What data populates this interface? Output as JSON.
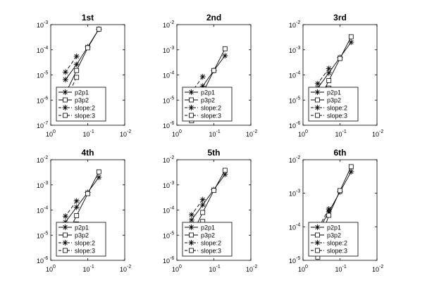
{
  "chart_data": [
    {
      "type": "line",
      "title": "1st",
      "x_scale": "log",
      "y_scale": "log",
      "xlim": [
        1,
        0.01
      ],
      "ylim": [
        1e-07,
        0.001
      ],
      "x_ticks": [
        {
          "base": "10",
          "exp": "0"
        },
        {
          "base": "10",
          "exp": "-1"
        },
        {
          "base": "10",
          "exp": "-2"
        }
      ],
      "y_ticks": [
        {
          "base": "10",
          "exp": "-3"
        },
        {
          "base": "10",
          "exp": "-4"
        },
        {
          "base": "10",
          "exp": "-5"
        },
        {
          "base": "10",
          "exp": "-6"
        },
        {
          "base": "10",
          "exp": "-7"
        }
      ],
      "legend_position": "bottom-left",
      "series": [
        {
          "name": "p2p1",
          "marker": "star",
          "dash": "solid",
          "x": [
            0.05,
            0.1,
            0.2,
            0.4
          ],
          "y": [
            0.00066,
            0.00013,
            2.6e-05,
            6.5e-06
          ]
        },
        {
          "name": "p3p2",
          "marker": "square",
          "dash": "solid",
          "x": [
            0.05,
            0.1,
            0.2,
            0.4
          ],
          "y": [
            0.00066,
            0.00012,
            1.5e-05,
            1.8e-06
          ]
        },
        {
          "name": "slope:2",
          "marker": "star",
          "dash": "dashed",
          "x": [
            0.2,
            0.4
          ],
          "y": [
            5.5e-05,
            1.3e-05
          ]
        },
        {
          "name": "slope:3",
          "marker": "square",
          "dash": "dashed",
          "x": [
            0.2,
            0.4
          ],
          "y": [
            8e-06,
            1e-06
          ]
        }
      ]
    },
    {
      "type": "line",
      "title": "2nd",
      "x_scale": "log",
      "y_scale": "log",
      "xlim": [
        1,
        0.01
      ],
      "ylim": [
        1e-06,
        0.01
      ],
      "x_ticks": [
        {
          "base": "10",
          "exp": "0"
        },
        {
          "base": "10",
          "exp": "-1"
        },
        {
          "base": "10",
          "exp": "-2"
        }
      ],
      "y_ticks": [
        {
          "base": "10",
          "exp": "-2"
        },
        {
          "base": "10",
          "exp": "-3"
        },
        {
          "base": "10",
          "exp": "-4"
        },
        {
          "base": "10",
          "exp": "-5"
        },
        {
          "base": "10",
          "exp": "-6"
        }
      ],
      "legend_position": "bottom-left",
      "series": [
        {
          "name": "p2p1",
          "marker": "star",
          "dash": "solid",
          "x": [
            0.05,
            0.1,
            0.2,
            0.4
          ],
          "y": [
            0.00058,
            0.00015,
            3.6e-05,
            9e-06
          ]
        },
        {
          "name": "p3p2",
          "marker": "square",
          "dash": "solid",
          "x": [
            0.05,
            0.1,
            0.2,
            0.4
          ],
          "y": [
            0.0011,
            0.00015,
            1.9e-05,
            2.5e-06
          ]
        },
        {
          "name": "slope:2",
          "marker": "star",
          "dash": "dashed",
          "x": [
            0.2,
            0.4
          ],
          "y": [
            8.5e-05,
            2.1e-05
          ]
        },
        {
          "name": "slope:3",
          "marker": "square",
          "dash": "dashed",
          "x": [
            0.2,
            0.4
          ],
          "y": [
            1.2e-05,
            1.5e-06
          ]
        }
      ]
    },
    {
      "type": "line",
      "title": "3rd",
      "x_scale": "log",
      "y_scale": "log",
      "xlim": [
        1,
        0.01
      ],
      "ylim": [
        1e-06,
        0.01
      ],
      "x_ticks": [
        {
          "base": "10",
          "exp": "0"
        },
        {
          "base": "10",
          "exp": "-1"
        },
        {
          "base": "10",
          "exp": "-2"
        }
      ],
      "y_ticks": [
        {
          "base": "10",
          "exp": "-2"
        },
        {
          "base": "10",
          "exp": "-3"
        },
        {
          "base": "10",
          "exp": "-4"
        },
        {
          "base": "10",
          "exp": "-5"
        },
        {
          "base": "10",
          "exp": "-6"
        }
      ],
      "legend_position": "bottom-left",
      "series": [
        {
          "name": "p2p1",
          "marker": "star",
          "dash": "solid",
          "x": [
            0.05,
            0.1,
            0.2,
            0.4
          ],
          "y": [
            0.002,
            0.0005,
            0.00012,
            3e-05
          ]
        },
        {
          "name": "p3p2",
          "marker": "square",
          "dash": "solid",
          "x": [
            0.05,
            0.1,
            0.2,
            0.4
          ],
          "y": [
            0.0033,
            0.00045,
            6e-05,
            7.5e-06
          ]
        },
        {
          "name": "slope:2",
          "marker": "star",
          "dash": "dashed",
          "x": [
            0.2,
            0.4
          ],
          "y": [
            0.00018,
            4.5e-05
          ]
        },
        {
          "name": "slope:3",
          "marker": "square",
          "dash": "dashed",
          "x": [
            0.2,
            0.4
          ],
          "y": [
            3e-05,
            3.8e-06
          ]
        }
      ]
    },
    {
      "type": "line",
      "title": "4th",
      "x_scale": "log",
      "y_scale": "log",
      "xlim": [
        1,
        0.01
      ],
      "ylim": [
        1e-06,
        0.01
      ],
      "x_ticks": [
        {
          "base": "10",
          "exp": "0"
        },
        {
          "base": "10",
          "exp": "-1"
        },
        {
          "base": "10",
          "exp": "-2"
        }
      ],
      "y_ticks": [
        {
          "base": "10",
          "exp": "-2"
        },
        {
          "base": "10",
          "exp": "-3"
        },
        {
          "base": "10",
          "exp": "-4"
        },
        {
          "base": "10",
          "exp": "-5"
        },
        {
          "base": "10",
          "exp": "-6"
        }
      ],
      "legend_position": "bottom-left",
      "series": [
        {
          "name": "p2p1",
          "marker": "star",
          "dash": "solid",
          "x": [
            0.05,
            0.1,
            0.2,
            0.4
          ],
          "y": [
            0.002,
            0.0005,
            0.00013,
            3.3e-05
          ]
        },
        {
          "name": "p3p2",
          "marker": "square",
          "dash": "solid",
          "x": [
            0.05,
            0.1,
            0.2,
            0.4
          ],
          "y": [
            0.0033,
            0.00045,
            6e-05,
            7.5e-06
          ]
        },
        {
          "name": "slope:2",
          "marker": "star",
          "dash": "dashed",
          "x": [
            0.2,
            0.4
          ],
          "y": [
            0.00023,
            5.7e-05
          ]
        },
        {
          "name": "slope:3",
          "marker": "square",
          "dash": "dashed",
          "x": [
            0.2,
            0.4
          ],
          "y": [
            2.8e-05,
            3.5e-06
          ]
        }
      ]
    },
    {
      "type": "line",
      "title": "5th",
      "x_scale": "log",
      "y_scale": "log",
      "xlim": [
        1,
        0.01
      ],
      "ylim": [
        1e-06,
        0.01
      ],
      "x_ticks": [
        {
          "base": "10",
          "exp": "0"
        },
        {
          "base": "10",
          "exp": "-1"
        },
        {
          "base": "10",
          "exp": "-2"
        }
      ],
      "y_ticks": [
        {
          "base": "10",
          "exp": "-2"
        },
        {
          "base": "10",
          "exp": "-3"
        },
        {
          "base": "10",
          "exp": "-4"
        },
        {
          "base": "10",
          "exp": "-5"
        },
        {
          "base": "10",
          "exp": "-6"
        }
      ],
      "legend_position": "bottom-left",
      "series": [
        {
          "name": "p2p1",
          "marker": "star",
          "dash": "solid",
          "x": [
            0.05,
            0.1,
            0.2,
            0.4
          ],
          "y": [
            0.0026,
            0.00065,
            0.00016,
            4e-05
          ]
        },
        {
          "name": "p3p2",
          "marker": "square",
          "dash": "solid",
          "x": [
            0.05,
            0.1,
            0.2,
            0.4
          ],
          "y": [
            0.0038,
            0.0006,
            8e-05,
            1e-05
          ]
        },
        {
          "name": "slope:2",
          "marker": "star",
          "dash": "dashed",
          "x": [
            0.2,
            0.4
          ],
          "y": [
            0.00026,
            6.5e-05
          ]
        },
        {
          "name": "slope:3",
          "marker": "square",
          "dash": "dashed",
          "x": [
            0.2,
            0.4
          ],
          "y": [
            3.5e-05,
            4.4e-06
          ]
        }
      ]
    },
    {
      "type": "line",
      "title": "6th",
      "x_scale": "log",
      "y_scale": "log",
      "xlim": [
        1,
        0.01
      ],
      "ylim": [
        1e-05,
        0.01
      ],
      "x_ticks": [
        {
          "base": "10",
          "exp": "0"
        },
        {
          "base": "10",
          "exp": "-1"
        },
        {
          "base": "10",
          "exp": "-2"
        }
      ],
      "y_ticks": [
        {
          "base": "10",
          "exp": "-2"
        },
        {
          "base": "10",
          "exp": "-3"
        },
        {
          "base": "10",
          "exp": "-4"
        },
        {
          "base": "10",
          "exp": "-5"
        }
      ],
      "legend_position": "bottom-left",
      "series": [
        {
          "name": "p2p1",
          "marker": "star",
          "dash": "solid",
          "x": [
            0.05,
            0.1,
            0.2,
            0.4
          ],
          "y": [
            0.0044,
            0.0011,
            0.00028,
            7e-05
          ]
        },
        {
          "name": "p3p2",
          "marker": "square",
          "dash": "solid",
          "x": [
            0.05,
            0.1,
            0.2,
            0.4
          ],
          "y": [
            0.0062,
            0.0012,
            0.00022,
            2.5e-05
          ]
        },
        {
          "name": "slope:2",
          "marker": "star",
          "dash": "dashed",
          "x": [
            0.2,
            0.4
          ],
          "y": [
            0.00034,
            8.5e-05
          ]
        },
        {
          "name": "slope:3",
          "marker": "square",
          "dash": "dashed",
          "x": [
            0.2,
            0.4
          ],
          "y": [
            0.0001,
            1.25e-05
          ]
        }
      ]
    }
  ]
}
